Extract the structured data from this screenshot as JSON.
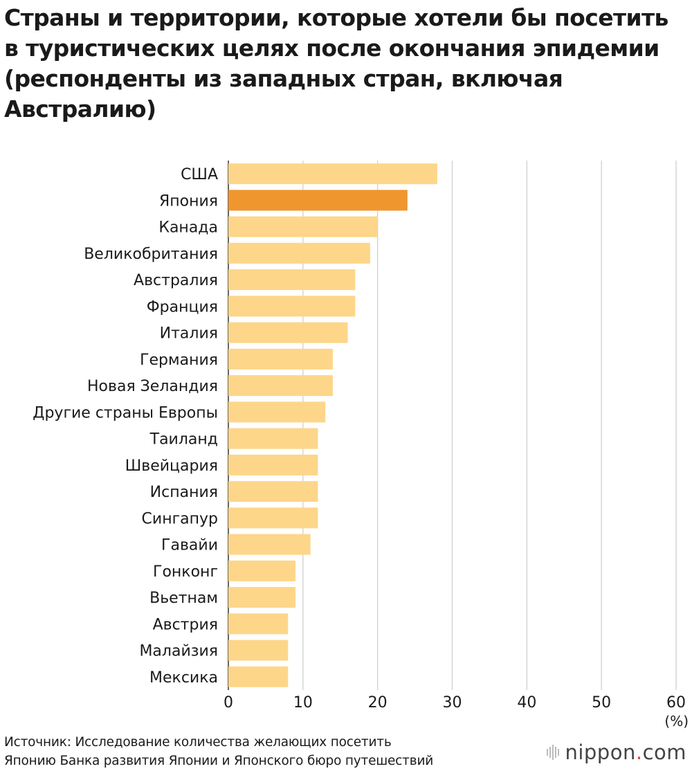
{
  "chart_data": {
    "type": "bar",
    "orientation": "horizontal",
    "title": "Страны и территории, которые хотели бы посетить в туристических целях после окончания эпидемии (респонденты из западных стран, включая Австралию)",
    "categories": [
      "США",
      "Япония",
      "Канада",
      "Великобритания",
      "Австралия",
      "Франция",
      "Италия",
      "Германия",
      "Новая Зеландия",
      "Другие страны Европы",
      "Таиланд",
      "Швейцария",
      "Испания",
      "Сингапур",
      "Гавайи",
      "Гонконг",
      "Вьетнам",
      "Австрия",
      "Малайзия",
      "Мексика"
    ],
    "values": [
      28,
      24,
      20,
      19,
      17,
      17,
      16,
      14,
      14,
      13,
      12,
      12,
      12,
      12,
      11,
      9,
      9,
      8,
      8,
      8
    ],
    "highlight": "Япония",
    "colors": {
      "bar": "#fdd68a",
      "highlight": "#f0962e",
      "grid": "#cccccc",
      "axis": "#333333"
    },
    "xlim": [
      0,
      60
    ],
    "xticks": [
      "0",
      "10",
      "20",
      "30",
      "40",
      "50",
      "60"
    ],
    "xunit": "(%)",
    "grid": true
  },
  "source": {
    "line1": "Источник: Исследование количества желающих посетить",
    "line2": "Японию Банка развития Японии и Японского бюро путешествий"
  },
  "brand": {
    "name": "nippon",
    "dot": ".",
    "tld": "com",
    "icon": "nippon-logo-icon"
  }
}
